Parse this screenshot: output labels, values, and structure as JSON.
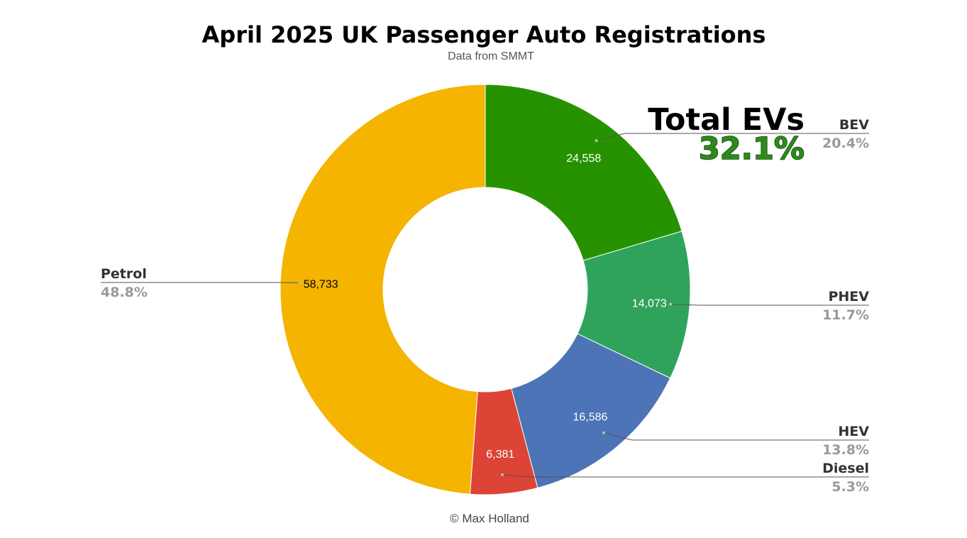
{
  "chart_data": {
    "type": "pie",
    "donut": true,
    "title": "April 2025 UK Passenger Auto Registrations",
    "subtitle": "Data from SMMT",
    "footer": "© Max Holland",
    "slices": [
      {
        "name": "BEV",
        "value": 24558,
        "value_label": "24,558",
        "percent_label": "20.4%",
        "color": "#269200",
        "value_text_color": "#ffffff"
      },
      {
        "name": "PHEV",
        "value": 14073,
        "value_label": "14,073",
        "percent_label": "11.7%",
        "color": "#2fa35c",
        "value_text_color": "#ffffff"
      },
      {
        "name": "HEV",
        "value": 16586,
        "value_label": "16,586",
        "percent_label": "13.8%",
        "color": "#4c74b6",
        "value_text_color": "#ffffff"
      },
      {
        "name": "Diesel",
        "value": 6381,
        "value_label": "6,381",
        "percent_label": "5.3%",
        "color": "#dc4436",
        "value_text_color": "#ffffff"
      },
      {
        "name": "Petrol",
        "value": 58733,
        "value_label": "58,733",
        "percent_label": "48.8%",
        "color": "#f4b400",
        "value_text_color": "#000000"
      }
    ],
    "legend_placement": "callout labels beside slices",
    "annotation": {
      "label": "Total EVs",
      "value": "32.1%"
    }
  }
}
